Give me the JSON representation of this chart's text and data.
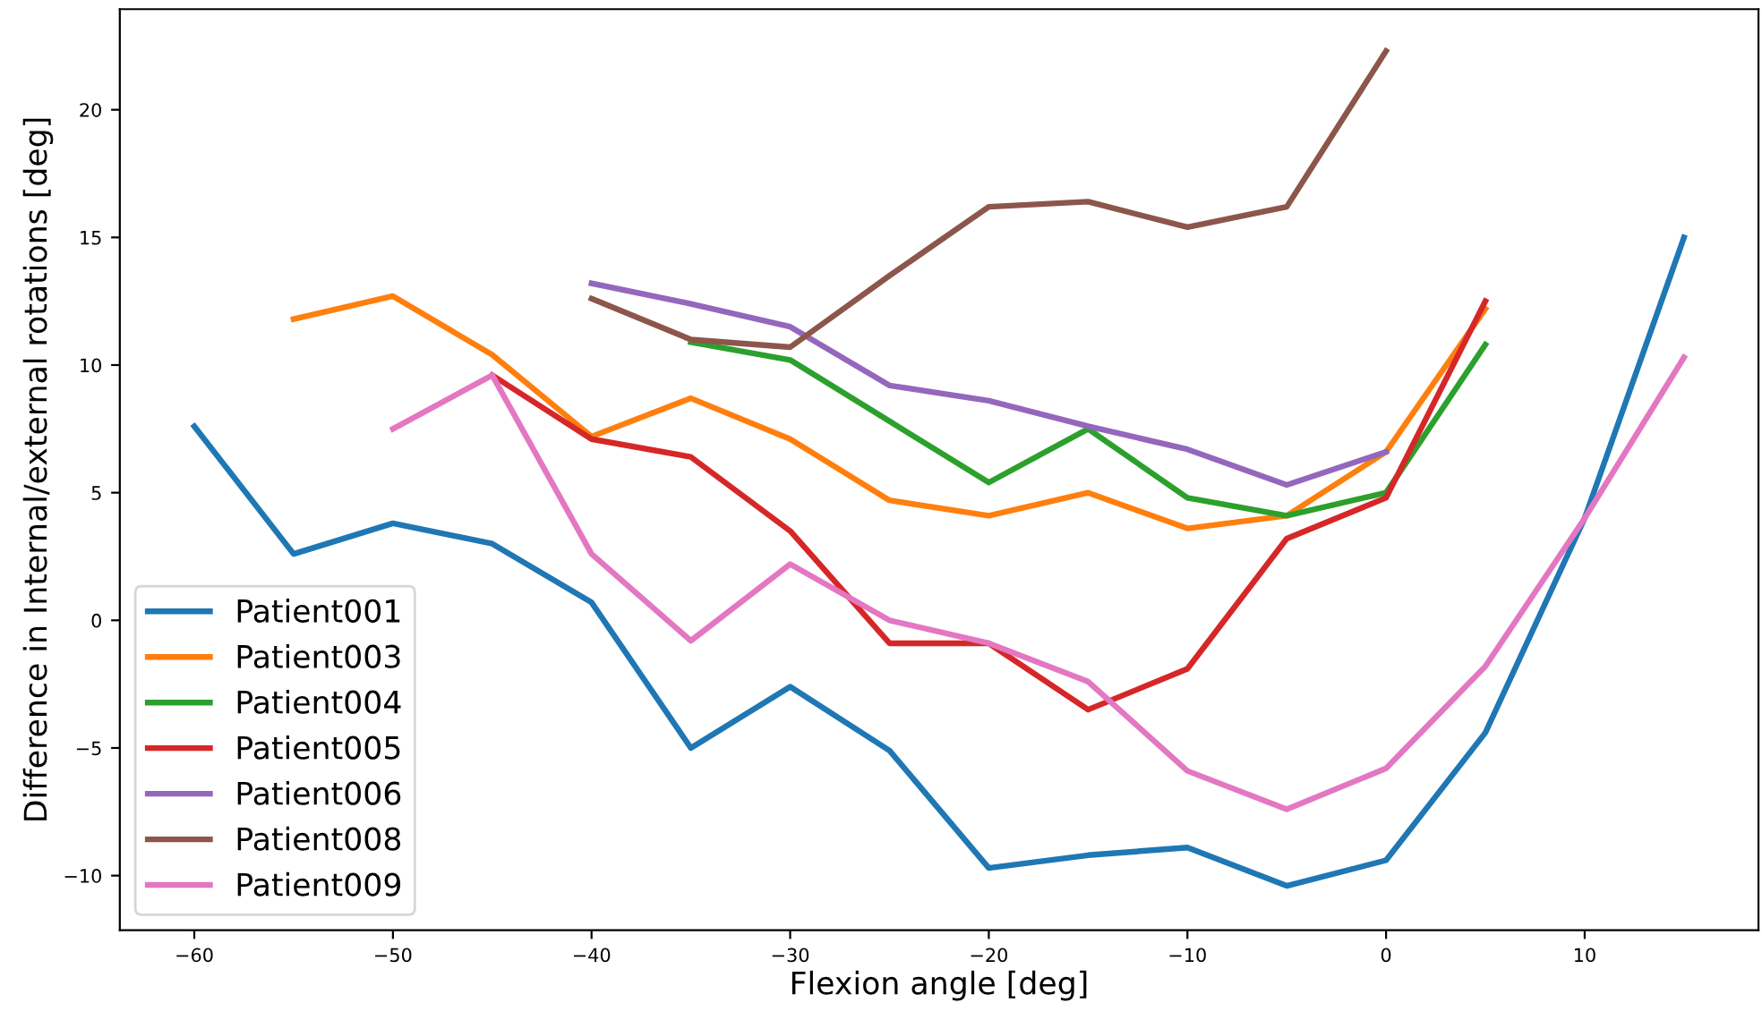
{
  "chart_data": {
    "type": "line",
    "xlabel": "Flexion angle [deg]",
    "ylabel": "Difference in Internal/external rotations [deg]",
    "xlim": [
      -63.75,
      18.75
    ],
    "ylim": [
      -12.14,
      23.94
    ],
    "xticks": [
      -60,
      -50,
      -40,
      -30,
      -20,
      -10,
      0,
      10
    ],
    "yticks": [
      -10,
      -5,
      0,
      5,
      10,
      15,
      20
    ],
    "grid": false,
    "legend": "bottom left",
    "marker": "none",
    "line_style": "solid",
    "series": [
      {
        "name": "Patient001",
        "color": "#1f77b4",
        "x": [
          -60,
          -55,
          -50,
          -45,
          -40,
          -35,
          -30,
          -25,
          -20,
          -15,
          -10,
          -5,
          0,
          5,
          10,
          15
        ],
        "values": [
          7.6,
          2.6,
          3.8,
          3.0,
          0.7,
          -5.0,
          -2.6,
          -5.1,
          -9.7,
          -9.2,
          -8.9,
          -10.4,
          -9.4,
          -4.4,
          4.0,
          15.0
        ]
      },
      {
        "name": "Patient003",
        "color": "#ff7f0e",
        "x": [
          -55,
          -50,
          -45,
          -40,
          -35,
          -30,
          -25,
          -20,
          -15,
          -10,
          -5,
          0,
          5
        ],
        "values": [
          11.8,
          12.7,
          10.4,
          7.2,
          8.7,
          7.1,
          4.7,
          4.1,
          5.0,
          3.6,
          4.1,
          6.6,
          12.2
        ]
      },
      {
        "name": "Patient004",
        "color": "#2ca02c",
        "x": [
          -35,
          -30,
          -25,
          -20,
          -15,
          -10,
          -5,
          0,
          5
        ],
        "values": [
          10.9,
          10.2,
          7.8,
          5.4,
          7.5,
          4.8,
          4.1,
          5.0,
          10.8
        ]
      },
      {
        "name": "Patient005",
        "color": "#d62728",
        "x": [
          -45,
          -40,
          -35,
          -30,
          -25,
          -20,
          -15,
          -10,
          -5,
          0,
          5
        ],
        "values": [
          9.6,
          7.1,
          6.4,
          3.5,
          -0.9,
          -0.9,
          -3.5,
          -1.9,
          3.2,
          4.8,
          12.5
        ]
      },
      {
        "name": "Patient006",
        "color": "#9467bd",
        "x": [
          -40,
          -35,
          -30,
          -25,
          -20,
          -15,
          -10,
          -5,
          0
        ],
        "values": [
          13.2,
          12.4,
          11.5,
          9.2,
          8.6,
          7.6,
          6.7,
          5.3,
          6.6
        ]
      },
      {
        "name": "Patient008",
        "color": "#8c564b",
        "x": [
          -40,
          -35,
          -30,
          -25,
          -20,
          -15,
          -10,
          -5,
          0
        ],
        "values": [
          12.6,
          11.0,
          10.7,
          13.5,
          16.2,
          16.4,
          15.4,
          16.2,
          22.3
        ]
      },
      {
        "name": "Patient009",
        "color": "#e377c2",
        "x": [
          -50,
          -45,
          -40,
          -35,
          -30,
          -25,
          -20,
          -15,
          -10,
          -5,
          0,
          5,
          10,
          15
        ],
        "values": [
          7.5,
          9.6,
          2.6,
          -0.8,
          2.2,
          0.0,
          -0.9,
          -2.4,
          -5.9,
          -7.4,
          -5.8,
          -1.8,
          4.0,
          10.3
        ]
      }
    ]
  }
}
